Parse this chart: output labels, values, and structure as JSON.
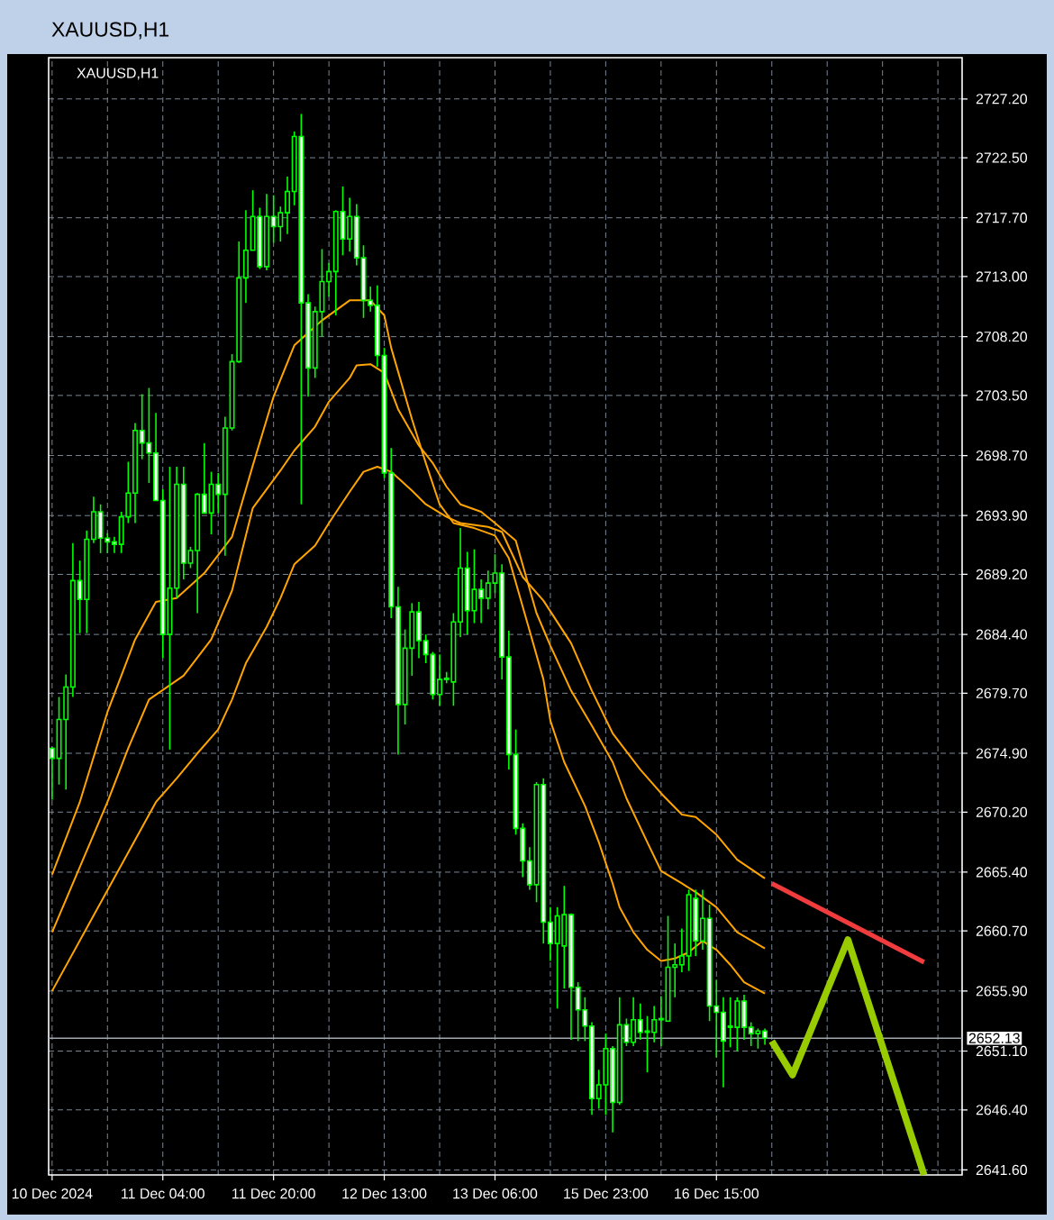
{
  "chart_data": {
    "type": "candlestick",
    "title": "XAUUSD,H1",
    "subtitle": "XAUUSD,H1",
    "categories": [
      "10 Dec 2024",
      null,
      null,
      null,
      null,
      null,
      null,
      null,
      null,
      null,
      null,
      null,
      null,
      null,
      null,
      null,
      "11 Dec 04:00",
      null,
      null,
      null,
      null,
      null,
      null,
      null,
      null,
      null,
      null,
      null,
      null,
      null,
      null,
      null,
      "11 Dec 20:00",
      null,
      null,
      null,
      null,
      null,
      null,
      null,
      null,
      null,
      null,
      null,
      null,
      null,
      null,
      null,
      "12 Dec 13:00",
      null,
      null,
      null,
      null,
      null,
      null,
      null,
      null,
      null,
      null,
      null,
      null,
      null,
      null,
      null,
      "13 Dec 06:00",
      null,
      null,
      null,
      null,
      null,
      null,
      null,
      null,
      null,
      null,
      null,
      null,
      null,
      null,
      null,
      "15 Dec 23:00",
      null,
      null,
      null,
      null,
      null,
      null,
      null,
      null,
      null,
      null,
      null,
      null,
      null,
      null,
      null,
      "16 Dec 15:00",
      null,
      null,
      null,
      null,
      null,
      null,
      null,
      null,
      null,
      null,
      null,
      null,
      null,
      null,
      null,
      null,
      null,
      null,
      null,
      null,
      null,
      null,
      null,
      null,
      null,
      null,
      null,
      null,
      null,
      null,
      null,
      null,
      null,
      null,
      null
    ],
    "ohlc": [
      [
        2675.3,
        2675.4,
        2671.2,
        2674.5
      ],
      [
        2674.5,
        2679.4,
        2672.4,
        2677.6
      ],
      [
        2677.6,
        2681.2,
        2672.0,
        2680.2
      ],
      [
        2680.2,
        2691.7,
        2679.4,
        2688.7
      ],
      [
        2688.7,
        2690.3,
        2684.5,
        2687.2
      ],
      [
        2687.2,
        2692.7,
        2684.5,
        2692.0
      ],
      [
        2692.0,
        2695.4,
        2691.7,
        2694.2
      ],
      [
        2694.2,
        2694.8,
        2690.9,
        2692.1
      ],
      [
        2692.1,
        2692.5,
        2690.9,
        2691.8
      ],
      [
        2691.8,
        2692.2,
        2690.9,
        2691.6
      ],
      [
        2691.6,
        2694.2,
        2690.9,
        2693.8
      ],
      [
        2693.8,
        2698.2,
        2693.3,
        2695.7
      ],
      [
        2695.7,
        2701.3,
        2693.3,
        2700.7
      ],
      [
        2700.7,
        2703.6,
        2698.4,
        2699.7
      ],
      [
        2699.7,
        2704.1,
        2696.5,
        2698.9
      ],
      [
        2698.9,
        2702.1,
        2695.1,
        2695.1
      ],
      [
        2695.1,
        2696.0,
        2682.5,
        2684.4
      ],
      [
        2684.4,
        2697.8,
        2675.2,
        2688.1
      ],
      [
        2688.1,
        2697.8,
        2687.3,
        2696.4
      ],
      [
        2696.4,
        2697.8,
        2688.8,
        2690.1
      ],
      [
        2690.1,
        2691.4,
        2689.7,
        2691.1
      ],
      [
        2691.1,
        2695.7,
        2686.1,
        2695.6
      ],
      [
        2695.6,
        2699.7,
        2694.1,
        2694.1
      ],
      [
        2694.1,
        2697.4,
        2692.4,
        2696.4
      ],
      [
        2696.4,
        2697.3,
        2694.1,
        2695.6
      ],
      [
        2695.6,
        2701.8,
        2690.7,
        2700.9
      ],
      [
        2700.9,
        2706.8,
        2700.7,
        2706.2
      ],
      [
        2706.2,
        2715.8,
        2706.1,
        2712.9
      ],
      [
        2712.9,
        2718.3,
        2710.9,
        2715.1
      ],
      [
        2715.1,
        2719.9,
        2715.1,
        2717.8
      ],
      [
        2717.8,
        2718.5,
        2713.6,
        2713.8
      ],
      [
        2713.8,
        2719.6,
        2713.5,
        2717.8
      ],
      [
        2717.8,
        2719.5,
        2715.7,
        2717.0
      ],
      [
        2717.0,
        2718.6,
        2715.8,
        2718.1
      ],
      [
        2718.1,
        2721.0,
        2716.4,
        2719.8
      ],
      [
        2719.8,
        2724.6,
        2718.7,
        2724.2
      ],
      [
        2724.2,
        2726.0,
        2694.8,
        2710.9
      ],
      [
        2710.9,
        2711.6,
        2703.4,
        2705.7
      ],
      [
        2705.7,
        2710.6,
        2704.9,
        2710.2
      ],
      [
        2710.2,
        2715.2,
        2708.2,
        2712.6
      ],
      [
        2712.6,
        2714.1,
        2711.4,
        2713.4
      ],
      [
        2713.4,
        2718.3,
        2709.9,
        2718.2
      ],
      [
        2718.2,
        2720.2,
        2714.7,
        2716.0
      ],
      [
        2716.0,
        2719.3,
        2715.0,
        2717.8
      ],
      [
        2717.8,
        2718.8,
        2713.9,
        2714.5
      ],
      [
        2714.5,
        2715.5,
        2709.7,
        2711.1
      ],
      [
        2711.1,
        2712.2,
        2710.2,
        2710.7
      ],
      [
        2710.7,
        2712.3,
        2705.8,
        2706.7
      ],
      [
        2706.7,
        2707.3,
        2696.9,
        2697.3
      ],
      [
        2697.3,
        2699.3,
        2685.7,
        2686.6
      ],
      [
        2686.6,
        2688.2,
        2674.8,
        2678.8
      ],
      [
        2678.8,
        2684.8,
        2677.2,
        2683.3
      ],
      [
        2683.3,
        2686.9,
        2681.1,
        2686.2
      ],
      [
        2686.2,
        2687.0,
        2682.5,
        2683.9
      ],
      [
        2683.9,
        2684.4,
        2682.1,
        2682.8
      ],
      [
        2682.8,
        2683.0,
        2679.2,
        2679.6
      ],
      [
        2679.6,
        2682.8,
        2678.7,
        2680.8
      ],
      [
        2680.8,
        2681.4,
        2680.5,
        2680.9
      ],
      [
        2680.6,
        2686.1,
        2678.7,
        2685.4
      ],
      [
        2685.4,
        2692.9,
        2684.2,
        2689.7
      ],
      [
        2689.7,
        2691.0,
        2684.4,
        2686.3
      ],
      [
        2686.3,
        2691.2,
        2685.3,
        2688.0
      ],
      [
        2688.0,
        2688.8,
        2685.3,
        2687.3
      ],
      [
        2687.3,
        2689.5,
        2686.4,
        2688.5
      ],
      [
        2688.5,
        2690.8,
        2687.7,
        2689.3
      ],
      [
        2689.3,
        2690.0,
        2680.8,
        2682.6
      ],
      [
        2682.6,
        2684.7,
        2673.6,
        2674.8
      ],
      [
        2674.8,
        2676.8,
        2668.4,
        2668.9
      ],
      [
        2668.9,
        2669.3,
        2665.0,
        2666.3
      ],
      [
        2666.3,
        2667.4,
        2664.0,
        2664.4
      ],
      [
        2664.4,
        2672.6,
        2663.0,
        2672.4
      ],
      [
        2672.4,
        2672.9,
        2659.7,
        2661.4
      ],
      [
        2661.4,
        2662.6,
        2658.3,
        2659.7
      ],
      [
        2659.7,
        2662.6,
        2654.5,
        2661.9
      ],
      [
        2659.5,
        2664.3,
        2656.1,
        2662.0
      ],
      [
        2662.0,
        2662.1,
        2652.0,
        2656.2
      ],
      [
        2656.2,
        2656.6,
        2651.9,
        2654.4
      ],
      [
        2654.4,
        2655.4,
        2651.9,
        2653.1
      ],
      [
        2653.1,
        2653.4,
        2646.0,
        2647.3
      ],
      [
        2647.3,
        2649.6,
        2646.5,
        2648.4
      ],
      [
        2648.4,
        2652.5,
        2646.0,
        2651.3
      ],
      [
        2651.3,
        2651.5,
        2644.6,
        2647.0
      ],
      [
        2647.0,
        2655.4,
        2646.8,
        2653.2
      ],
      [
        2653.2,
        2653.7,
        2651.5,
        2651.8
      ],
      [
        2651.8,
        2655.4,
        2651.5,
        2653.6
      ],
      [
        2653.6,
        2654.9,
        2652.0,
        2652.6
      ],
      [
        2652.6,
        2653.9,
        2649.4,
        2652.7
      ],
      [
        2652.6,
        2654.7,
        2651.8,
        2653.6
      ],
      [
        2653.6,
        2655.5,
        2651.5,
        2653.7
      ],
      [
        2653.5,
        2661.9,
        2653.5,
        2657.8
      ],
      [
        2657.8,
        2659.7,
        2655.4,
        2658.0
      ],
      [
        2658.0,
        2660.9,
        2657.4,
        2658.7
      ],
      [
        2658.7,
        2664.0,
        2657.5,
        2663.6
      ],
      [
        2663.3,
        2664.0,
        2658.7,
        2659.9
      ],
      [
        2659.9,
        2664.0,
        2659.2,
        2661.7
      ],
      [
        2661.7,
        2662.8,
        2653.5,
        2654.7
      ],
      [
        2654.7,
        2656.8,
        2650.6,
        2654.2
      ],
      [
        2654.2,
        2655.4,
        2648.2,
        2651.9
      ],
      [
        2653.1,
        2655.4,
        2651.4,
        2653.0
      ],
      [
        2653.0,
        2655.4,
        2651.1,
        2655.1
      ],
      [
        2655.1,
        2655.6,
        2652.0,
        2653.0
      ],
      [
        2653.0,
        2653.4,
        2651.5,
        2652.5
      ],
      [
        2652.5,
        2652.9,
        2651.3,
        2652.7
      ],
      [
        2652.7,
        2652.9,
        2651.6,
        2652.13
      ],
      null,
      null,
      null,
      null,
      null,
      null,
      null,
      null,
      null,
      null,
      null,
      null,
      null,
      null,
      null,
      null,
      null,
      null,
      null,
      null,
      null,
      null,
      null,
      null,
      null,
      null,
      null,
      null
    ],
    "color": "#00ff00",
    "colors": [
      "#ffffff",
      "#000000",
      "#000000",
      "#000000",
      "#ffffff",
      "#000000",
      "#000000",
      "#ffffff",
      "#ffffff",
      "#ffffff",
      "#000000",
      "#000000",
      "#000000",
      "#ffffff",
      "#ffffff",
      "#ffffff",
      "#ffffff",
      "#000000",
      "#000000",
      "#ffffff",
      "#000000",
      "#000000",
      "#ffffff",
      "#000000",
      "#ffffff",
      "#000000",
      "#000000",
      "#000000",
      "#000000",
      "#000000",
      "#ffffff",
      "#000000",
      "#ffffff",
      "#000000",
      "#000000",
      "#000000",
      "#ffffff",
      "#ffffff",
      "#000000",
      "#000000",
      "#000000",
      "#000000",
      "#ffffff",
      "#000000",
      "#ffffff",
      "#ffffff",
      "#ffffff",
      "#ffffff",
      "#ffffff",
      "#ffffff",
      "#ffffff",
      "#000000",
      "#000000",
      "#ffffff",
      "#ffffff",
      "#ffffff",
      "#000000",
      "#000000",
      "#000000",
      "#000000",
      "#ffffff",
      "#000000",
      "#ffffff",
      "#000000",
      "#000000",
      "#ffffff",
      "#ffffff",
      "#ffffff",
      "#ffffff",
      "#ffffff",
      "#000000",
      "#ffffff",
      "#ffffff",
      "#000000",
      "#000000",
      "#ffffff",
      "#ffffff",
      "#ffffff",
      "#ffffff",
      "#000000",
      "#000000",
      "#ffffff",
      "#000000",
      "#ffffff",
      "#000000",
      "#ffffff",
      "#000000",
      "#000000",
      "#000000",
      "#000000",
      "#000000",
      "#000000",
      "#000000",
      "#ffffff",
      "#000000",
      "#ffffff",
      "#ffffff",
      "#ffffff",
      "#ffffff",
      "#000000",
      "#ffffff",
      "#ffffff",
      "#000000",
      "#ffffff",
      null,
      null,
      null,
      null,
      null,
      null,
      null,
      null,
      null,
      null,
      null,
      null,
      null,
      null,
      null,
      null,
      null,
      null,
      null,
      null,
      null,
      null,
      null,
      null,
      null,
      null,
      null,
      null
    ],
    "series": [
      {
        "type": "line",
        "color": "#ffa500",
        "values": [
          2665.2,
          null,
          null,
          null,
          2671.0,
          null,
          null,
          null,
          2678.2,
          null,
          null,
          null,
          2684.0,
          null,
          null,
          2687.0,
          null,
          null,
          2687.3,
          null,
          null,
          null,
          2689.3,
          null,
          null,
          null,
          2692.2,
          null,
          null,
          2697.9,
          null,
          null,
          2703.4,
          null,
          null,
          2707.5,
          null,
          null,
          null,
          2709.5,
          null,
          null,
          null,
          2711.1,
          null,
          null,
          2711.1,
          null,
          2709.9,
          2707.3,
          null,
          null,
          2701.6,
          null,
          2698.1,
          null,
          2694.8,
          null,
          2693.3,
          null,
          null,
          2692.9,
          null,
          null,
          2692.3,
          null,
          2690.5,
          null,
          null,
          2684.7,
          null,
          2680.8,
          2677.5,
          null,
          2674.2,
          null,
          null,
          2670.7,
          null,
          2667.8,
          null,
          2664.5,
          2662.6,
          null,
          2660.6,
          null,
          2659.2,
          null,
          2658.3,
          null,
          2658.5,
          null,
          2659.0,
          null,
          2659.9,
          null,
          2659.2,
          null,
          2658.0,
          null,
          2656.6,
          null,
          null,
          2655.7,
          null,
          null,
          null,
          null,
          null,
          null,
          null,
          null,
          null,
          null,
          null,
          null,
          null,
          null,
          null,
          null,
          null,
          null,
          null,
          null,
          null,
          null,
          null,
          null,
          null,
          null,
          null,
          null
        ]
      },
      {
        "type": "line",
        "color": "#ffa500",
        "values": [
          2660.6,
          null,
          null,
          null,
          null,
          null,
          null,
          null,
          2671.0,
          null,
          null,
          2675.3,
          null,
          null,
          2679.2,
          null,
          null,
          null,
          null,
          2681.1,
          null,
          null,
          null,
          2684.0,
          null,
          null,
          2687.9,
          null,
          null,
          2694.5,
          null,
          null,
          null,
          2697.5,
          null,
          2699.1,
          null,
          null,
          2701.0,
          null,
          2703.0,
          null,
          null,
          2704.9,
          2705.9,
          null,
          2706.0,
          null,
          2705.3,
          null,
          2702.4,
          null,
          null,
          2699.5,
          null,
          2698.1,
          null,
          2696.2,
          null,
          2694.8,
          null,
          null,
          2694.2,
          null,
          2693.3,
          null,
          null,
          2691.9,
          null,
          null,
          2686.1,
          null,
          2683.5,
          null,
          null,
          2679.9,
          null,
          null,
          2677.1,
          null,
          null,
          2674.2,
          null,
          2671.3,
          null,
          null,
          2667.8,
          null,
          2665.5,
          null,
          null,
          2664.5,
          null,
          2663.8,
          null,
          null,
          2662.6,
          null,
          null,
          2660.6,
          null,
          null,
          null,
          2659.3,
          null,
          null,
          null,
          null,
          null,
          null,
          null,
          null,
          null,
          null,
          null,
          null,
          null,
          null,
          null,
          null,
          null,
          null,
          null,
          null,
          null,
          null,
          null,
          null,
          null,
          null,
          null,
          null
        ]
      },
      {
        "type": "line",
        "color": "#ffa500",
        "values": [
          2655.9,
          null,
          null,
          null,
          null,
          null,
          null,
          null,
          null,
          null,
          null,
          null,
          null,
          null,
          null,
          2671.0,
          null,
          null,
          2672.9,
          null,
          null,
          2674.9,
          null,
          null,
          2676.8,
          null,
          2679.2,
          null,
          2682.1,
          null,
          null,
          2685.0,
          null,
          2687.3,
          null,
          2690.0,
          null,
          null,
          2691.5,
          null,
          2693.3,
          null,
          null,
          2695.8,
          null,
          2697.4,
          null,
          2697.8,
          null,
          2697.4,
          null,
          null,
          2695.9,
          null,
          2694.8,
          null,
          null,
          2693.8,
          null,
          2693.3,
          null,
          null,
          null,
          2693.0,
          null,
          2692.6,
          null,
          null,
          2689.0,
          null,
          null,
          2687.1,
          null,
          null,
          null,
          2683.7,
          null,
          null,
          2679.9,
          null,
          null,
          2676.5,
          null,
          null,
          null,
          2673.6,
          null,
          null,
          2671.7,
          null,
          null,
          2670.0,
          null,
          2669.8,
          null,
          null,
          2668.4,
          null,
          null,
          2666.4,
          null,
          null,
          null,
          2664.9,
          null,
          null,
          null,
          null,
          null,
          null,
          null,
          null,
          null,
          null,
          null,
          null,
          null,
          null,
          null,
          null,
          null,
          null,
          null,
          null,
          null,
          null,
          null,
          null,
          null,
          null,
          null,
          null
        ]
      },
      {
        "type": "line",
        "color": "#f03c3c",
        "values": [
          null,
          null,
          null,
          null,
          null,
          null,
          null,
          null,
          null,
          null,
          null,
          null,
          null,
          null,
          null,
          null,
          null,
          null,
          null,
          null,
          null,
          null,
          null,
          null,
          null,
          null,
          null,
          null,
          null,
          null,
          null,
          null,
          null,
          null,
          null,
          null,
          null,
          null,
          null,
          null,
          null,
          null,
          null,
          null,
          null,
          null,
          null,
          null,
          null,
          null,
          null,
          null,
          null,
          null,
          null,
          null,
          null,
          null,
          null,
          null,
          null,
          null,
          null,
          null,
          null,
          null,
          null,
          null,
          null,
          null,
          null,
          null,
          null,
          null,
          null,
          null,
          null,
          null,
          null,
          null,
          null,
          null,
          null,
          null,
          null,
          null,
          null,
          null,
          null,
          null,
          null,
          null,
          null,
          null,
          null,
          null,
          null,
          null,
          null,
          null,
          null,
          null,
          null,
          null,
          2664.5,
          null,
          null,
          null,
          null,
          null,
          null,
          null,
          null,
          null,
          null,
          null,
          null,
          null,
          null,
          null,
          null,
          null,
          null,
          null,
          null,
          null,
          2658.2,
          null,
          null,
          null,
          null,
          null
        ]
      },
      {
        "type": "line",
        "color": "#99cc00",
        "values": [
          null,
          null,
          null,
          null,
          null,
          null,
          null,
          null,
          null,
          null,
          null,
          null,
          null,
          null,
          null,
          null,
          null,
          null,
          null,
          null,
          null,
          null,
          null,
          null,
          null,
          null,
          null,
          null,
          null,
          null,
          null,
          null,
          null,
          null,
          null,
          null,
          null,
          null,
          null,
          null,
          null,
          null,
          null,
          null,
          null,
          null,
          null,
          null,
          null,
          null,
          null,
          null,
          null,
          null,
          null,
          null,
          null,
          null,
          null,
          null,
          null,
          null,
          null,
          null,
          null,
          null,
          null,
          null,
          null,
          null,
          null,
          null,
          null,
          null,
          null,
          null,
          null,
          null,
          null,
          null,
          null,
          null,
          null,
          null,
          null,
          null,
          null,
          null,
          null,
          null,
          null,
          null,
          null,
          null,
          null,
          null,
          null,
          null,
          null,
          null,
          null,
          null,
          null,
          null,
          2651.9,
          null,
          null,
          2649.2,
          null,
          null,
          null,
          null,
          null,
          null,
          null,
          2660.0,
          null,
          null,
          null,
          null,
          null,
          null,
          null,
          null,
          null,
          null,
          2641.2,
          null,
          null,
          null,
          null,
          null
        ]
      }
    ],
    "ylim": [
      2641.2,
      2730.5
    ],
    "yticks": [
      {
        "value": 2641.6,
        "label": "2641.60"
      },
      {
        "value": 2646.4,
        "label": "2646.40"
      },
      {
        "value": 2651.1,
        "label": "2651.10"
      },
      {
        "value": 2655.9,
        "label": "2655.90"
      },
      {
        "value": 2660.7,
        "label": "2660.70"
      },
      {
        "value": 2665.4,
        "label": "2665.40"
      },
      {
        "value": 2670.2,
        "label": "2670.20"
      },
      {
        "value": 2674.9,
        "label": "2674.90"
      },
      {
        "value": 2679.7,
        "label": "2679.70"
      },
      {
        "value": 2684.4,
        "label": "2684.40"
      },
      {
        "value": 2689.2,
        "label": "2689.20"
      },
      {
        "value": 2693.9,
        "label": "2693.90"
      },
      {
        "value": 2698.7,
        "label": "2698.70"
      },
      {
        "value": 2703.5,
        "label": "2703.50"
      },
      {
        "value": 2708.2,
        "label": "2708.20"
      },
      {
        "value": 2713.0,
        "label": "2713.00"
      },
      {
        "value": 2717.7,
        "label": "2717.70"
      },
      {
        "value": 2722.5,
        "label": "2722.50"
      },
      {
        "value": 2727.2,
        "label": "2727.20"
      }
    ],
    "grid": true,
    "ref_lines": [
      {
        "axis": "y",
        "value": 2652.13,
        "label": "2652.13",
        "color": "#a0a8b0"
      }
    ]
  }
}
